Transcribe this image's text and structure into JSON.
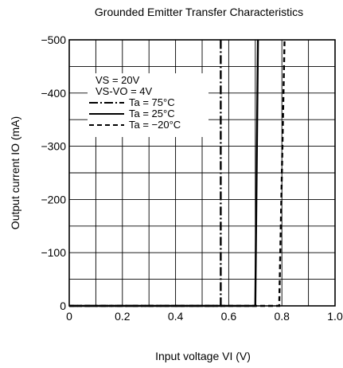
{
  "chart_data": {
    "type": "line",
    "title": "Grounded Emitter Transfer Characteristics",
    "xlabel": "Input voltage  VI  (V)",
    "ylabel": "Output current  IO (mA)",
    "xlim": [
      0,
      1.0
    ],
    "ylim": [
      0,
      -500
    ],
    "x_ticks": [
      "0",
      "0.2",
      "0.4",
      "0.6",
      "0.8",
      "1.0"
    ],
    "y_ticks": [
      "0",
      "−100",
      "−200",
      "−300",
      "−400",
      "−500"
    ],
    "grid": true,
    "conditions": [
      "VS = 20V",
      "VS-VO = 4V"
    ],
    "series": [
      {
        "name": "Ta = 75°C",
        "line_style": "dash-dot",
        "x": [
          0,
          0.57,
          0.57
        ],
        "y": [
          0,
          0,
          -500
        ]
      },
      {
        "name": "Ta = 25°C",
        "line_style": "solid",
        "x": [
          0,
          0.7,
          0.71
        ],
        "y": [
          0,
          0,
          -500
        ]
      },
      {
        "name": "Ta = −20°C",
        "line_style": "dashed",
        "x": [
          0,
          0.79,
          0.81
        ],
        "y": [
          0,
          0,
          -500
        ]
      }
    ]
  }
}
